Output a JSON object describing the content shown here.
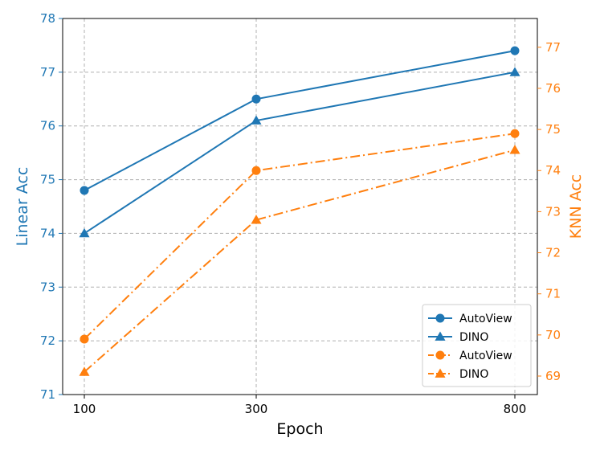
{
  "chart_data": {
    "type": "line",
    "categories": [
      "100",
      "300",
      "800"
    ],
    "xlabel": "Epoch",
    "left_axis": {
      "label": "Linear Acc",
      "color": "#1f77b4",
      "ylim": [
        71,
        78
      ],
      "ticks": [
        "71",
        "72",
        "73",
        "74",
        "75",
        "76",
        "77",
        "78"
      ]
    },
    "right_axis": {
      "label": "KNN Acc",
      "color": "#ff7f0e",
      "ylim": [
        68.55,
        77.7
      ],
      "ticks": [
        "69",
        "70",
        "71",
        "72",
        "73",
        "74",
        "75",
        "76",
        "77"
      ]
    },
    "grid": true,
    "legend_position": "lower-right",
    "series": [
      {
        "name": "AutoView",
        "axis": "left",
        "marker": "circle",
        "linestyle": "solid",
        "color": "#1f77b4",
        "values": [
          74.8,
          76.5,
          77.4
        ]
      },
      {
        "name": "DINO",
        "axis": "left",
        "marker": "triangle",
        "linestyle": "solid",
        "color": "#1f77b4",
        "values": [
          74.0,
          76.1,
          77.0
        ]
      },
      {
        "name": "AutoView",
        "axis": "right",
        "marker": "circle",
        "linestyle": "dashdot",
        "color": "#ff7f0e",
        "values": [
          69.9,
          74.0,
          74.9
        ]
      },
      {
        "name": "DINO",
        "axis": "right",
        "marker": "triangle",
        "linestyle": "dashdot",
        "color": "#ff7f0e",
        "values": [
          69.1,
          72.8,
          74.5
        ]
      }
    ]
  }
}
